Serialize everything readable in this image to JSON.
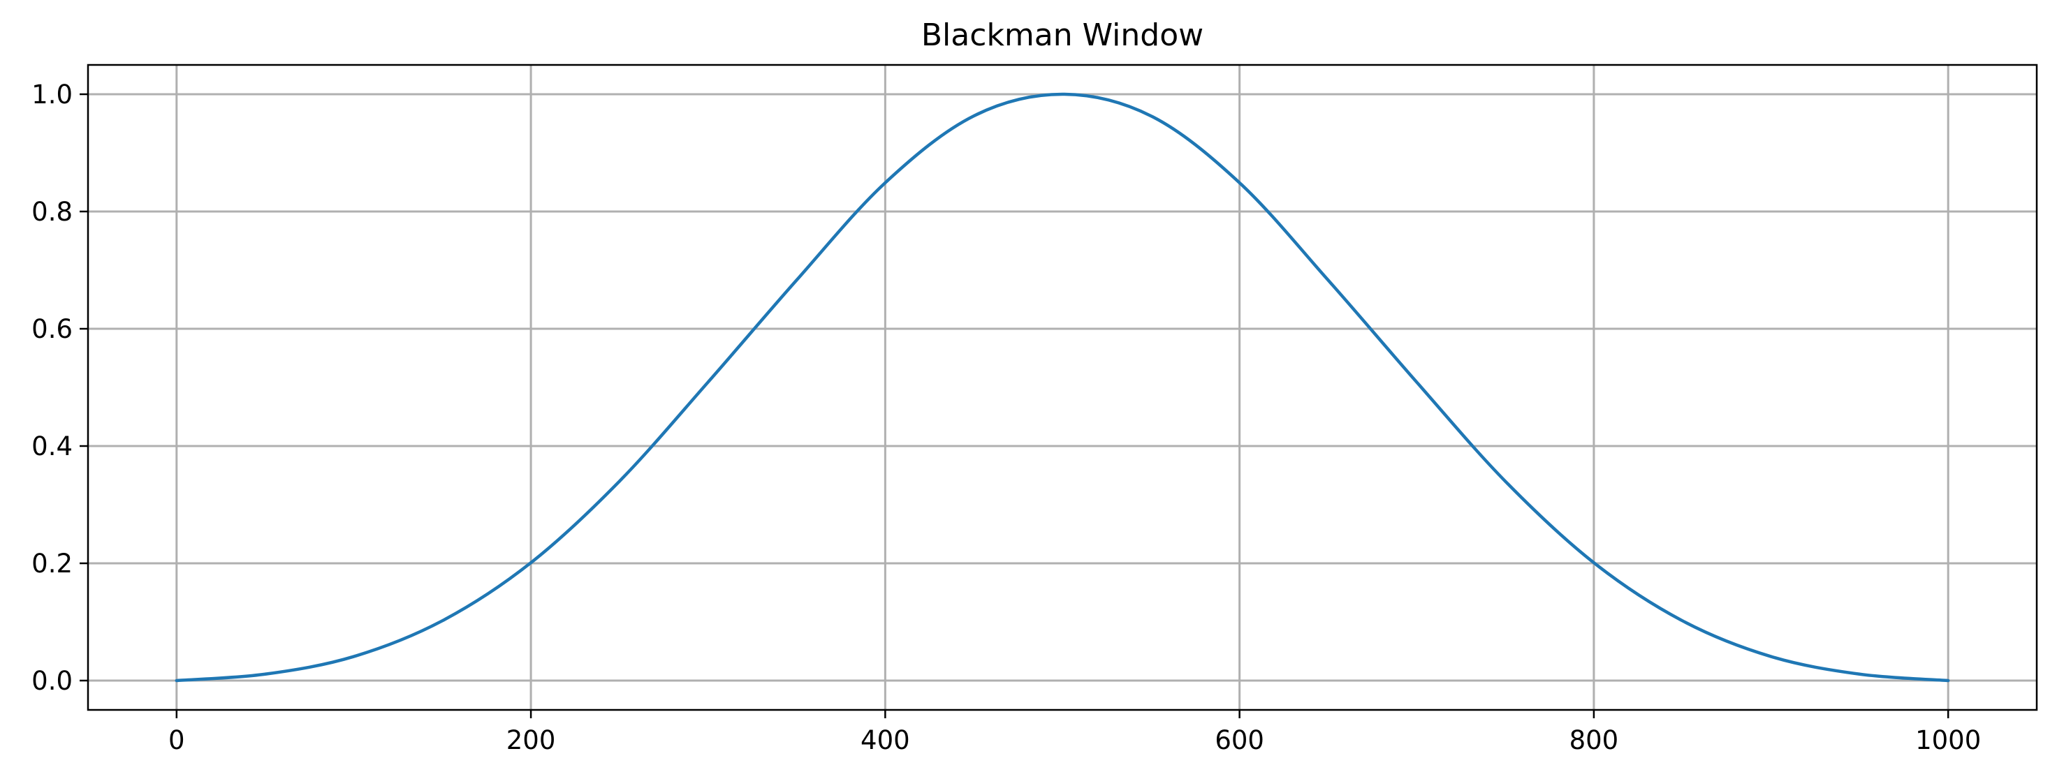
{
  "chart_data": {
    "type": "line",
    "title": "Blackman Window",
    "xlabel": "",
    "ylabel": "",
    "xlim": [
      -50,
      1050
    ],
    "ylim": [
      -0.05,
      1.05
    ],
    "grid": true,
    "x_ticks": [
      0,
      200,
      400,
      600,
      800,
      1000
    ],
    "x_tick_labels": [
      "0",
      "200",
      "400",
      "600",
      "800",
      "1000"
    ],
    "y_ticks": [
      0.0,
      0.2,
      0.4,
      0.6,
      0.8,
      1.0
    ],
    "y_tick_labels": [
      "0.0",
      "0.2",
      "0.4",
      "0.6",
      "0.8",
      "1.0"
    ],
    "series": [
      {
        "color": "#1f77b4",
        "x": [
          0,
          50,
          100,
          150,
          200,
          250,
          300,
          350,
          400,
          450,
          500,
          550,
          600,
          650,
          700,
          750,
          800,
          850,
          900,
          950,
          1000
        ],
        "y": [
          0.0,
          0.011,
          0.041,
          0.102,
          0.201,
          0.34,
          0.509,
          0.683,
          0.849,
          0.963,
          1.0,
          0.963,
          0.849,
          0.683,
          0.509,
          0.34,
          0.201,
          0.102,
          0.041,
          0.011,
          0.0
        ]
      }
    ]
  }
}
